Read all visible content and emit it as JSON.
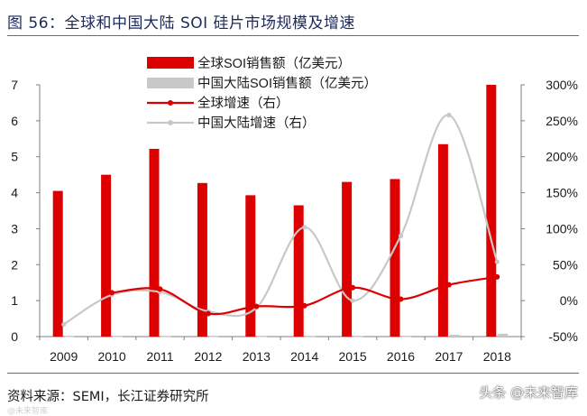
{
  "title": "图  56：全球和中国大陆 SOI 硅片市场规模及增速",
  "source": "资料来源：SEMI，长江证券研究所",
  "watermark": "头条 @未来智库",
  "watermark_left": "@未来智库",
  "colors": {
    "red": "#dd0000",
    "gray": "#c8c8c8",
    "axis": "#7f7f7f"
  },
  "chart_data": {
    "type": "bar+line",
    "categories": [
      "2009",
      "2010",
      "2011",
      "2012",
      "2013",
      "2014",
      "2015",
      "2016",
      "2017",
      "2018"
    ],
    "series": [
      {
        "name": "全球SOI销售额（亿美元）",
        "kind": "bar",
        "axis": "left",
        "color": "#dd0000",
        "values": [
          4.05,
          4.5,
          5.22,
          4.27,
          3.93,
          3.65,
          4.3,
          4.38,
          5.35,
          7.0
        ]
      },
      {
        "name": "中国大陆SOI销售额（亿美元）",
        "kind": "bar",
        "axis": "left",
        "color": "#c8c8c8",
        "values": [
          0.005,
          0.005,
          0.005,
          0.005,
          0.005,
          0.005,
          0.005,
          0.005,
          0.05,
          0.08
        ]
      },
      {
        "name": "全球增速（右）",
        "kind": "line",
        "axis": "right",
        "color": "#dd0000",
        "values": [
          null,
          11,
          16,
          -18,
          -8,
          -7,
          18,
          2,
          22,
          33
        ]
      },
      {
        "name": "中国大陆增速（右）",
        "kind": "line",
        "axis": "right",
        "color": "#c8c8c8",
        "values": [
          -33,
          8,
          12,
          -15,
          -10,
          102,
          0,
          90,
          258,
          54
        ]
      }
    ],
    "left_axis": {
      "min": 0,
      "max": 7,
      "ticks": [
        "0",
        "1",
        "2",
        "3",
        "4",
        "5",
        "6",
        "7"
      ]
    },
    "right_axis": {
      "min": -50,
      "max": 300,
      "ticks": [
        "-50%",
        "0%",
        "50%",
        "100%",
        "150%",
        "200%",
        "250%",
        "300%"
      ]
    },
    "legend_position": "top-center"
  }
}
